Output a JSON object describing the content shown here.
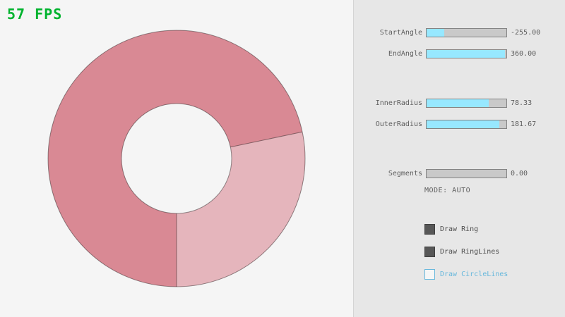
{
  "fps": "57 FPS",
  "colors": {
    "fps": "#00b32e",
    "ring_dark": "#d98994",
    "ring_light": "#e5b5bc",
    "ring_line": "rgba(0,0,0,0.4)",
    "ring_hole": "#f5f5f5",
    "slider_fill": "#97e8ff",
    "accent_blue": "#68b8dc"
  },
  "panel": {
    "sliders": [
      {
        "label": "StartAngle",
        "value": "-255.00",
        "fill_pct": 21.7
      },
      {
        "label": "EndAngle",
        "value": "360.00",
        "fill_pct": 98
      },
      {
        "label": "InnerRadius",
        "value": "78.33",
        "fill_pct": 78.3
      },
      {
        "label": "OuterRadius",
        "value": "181.67",
        "fill_pct": 90.8
      },
      {
        "label": "Segments",
        "value": "0.00",
        "fill_pct": 0
      }
    ],
    "mode_label": "MODE: AUTO",
    "checkboxes": [
      {
        "label": "Draw Ring",
        "checked": true
      },
      {
        "label": "Draw RingLines",
        "checked": true
      },
      {
        "label": "Draw CircleLines",
        "checked": false
      }
    ]
  }
}
